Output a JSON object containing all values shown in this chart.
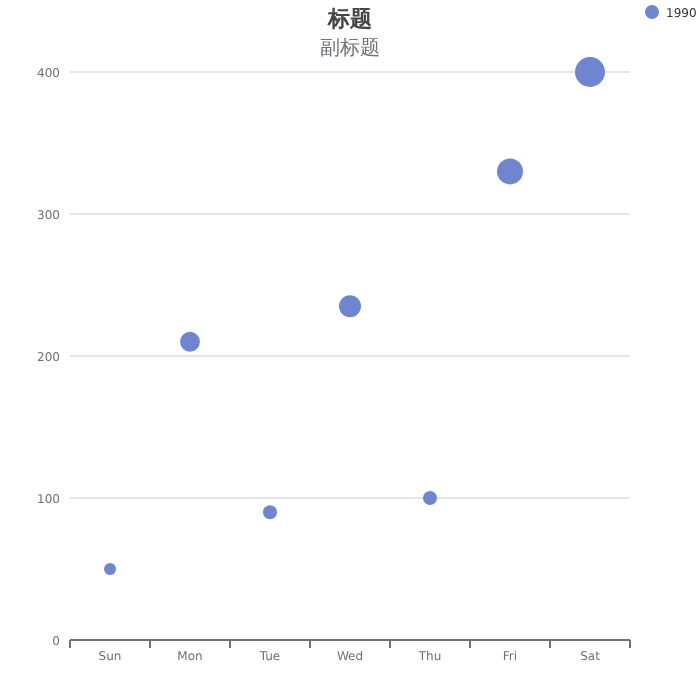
{
  "chart_data": {
    "type": "bubble",
    "title": "标题",
    "subtitle": "副标题",
    "categories": [
      "Sun",
      "Mon",
      "Tue",
      "Wed",
      "Thu",
      "Fri",
      "Sat"
    ],
    "series": [
      {
        "name": "1990",
        "color": "#7085cf",
        "values": [
          50,
          210,
          90,
          235,
          100,
          330,
          400
        ],
        "sizes": [
          0.16,
          0.44,
          0.22,
          0.54,
          0.22,
          0.75,
          1
        ]
      }
    ],
    "ylim": [
      0,
      400
    ],
    "yticks": [
      0,
      100,
      200,
      300,
      400
    ],
    "grid": "y",
    "legend": "top right"
  }
}
